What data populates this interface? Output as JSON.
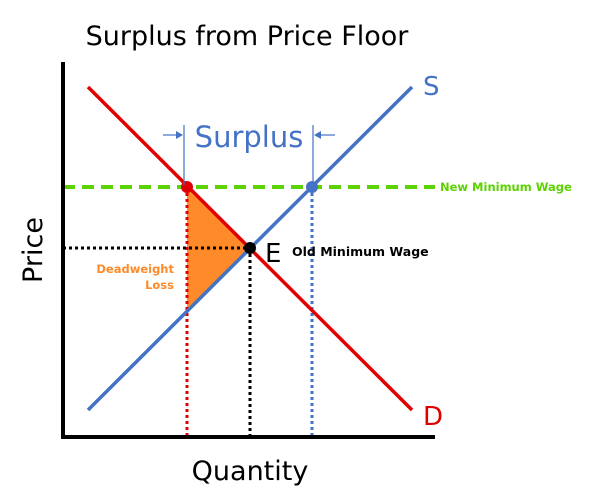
{
  "title": "Surplus from Price Floor",
  "axes": {
    "x_label": "Quantity",
    "y_label": "Price"
  },
  "curves": {
    "supply_label": "S",
    "demand_label": "D"
  },
  "equilibrium_label": "E",
  "annotations": {
    "surplus": "Surplus",
    "new_minimum_wage": "New Minimum Wage",
    "old_minimum_wage": "Old Minimum Wage",
    "deadweight_loss_line1": "Deadweight",
    "deadweight_loss_line2": "Loss"
  },
  "colors": {
    "supply": "#4472C4",
    "demand": "#E00000",
    "price_floor": "#5CD300",
    "deadweight_loss": "#FF8A2A",
    "surplus_text": "#4472C4"
  }
}
